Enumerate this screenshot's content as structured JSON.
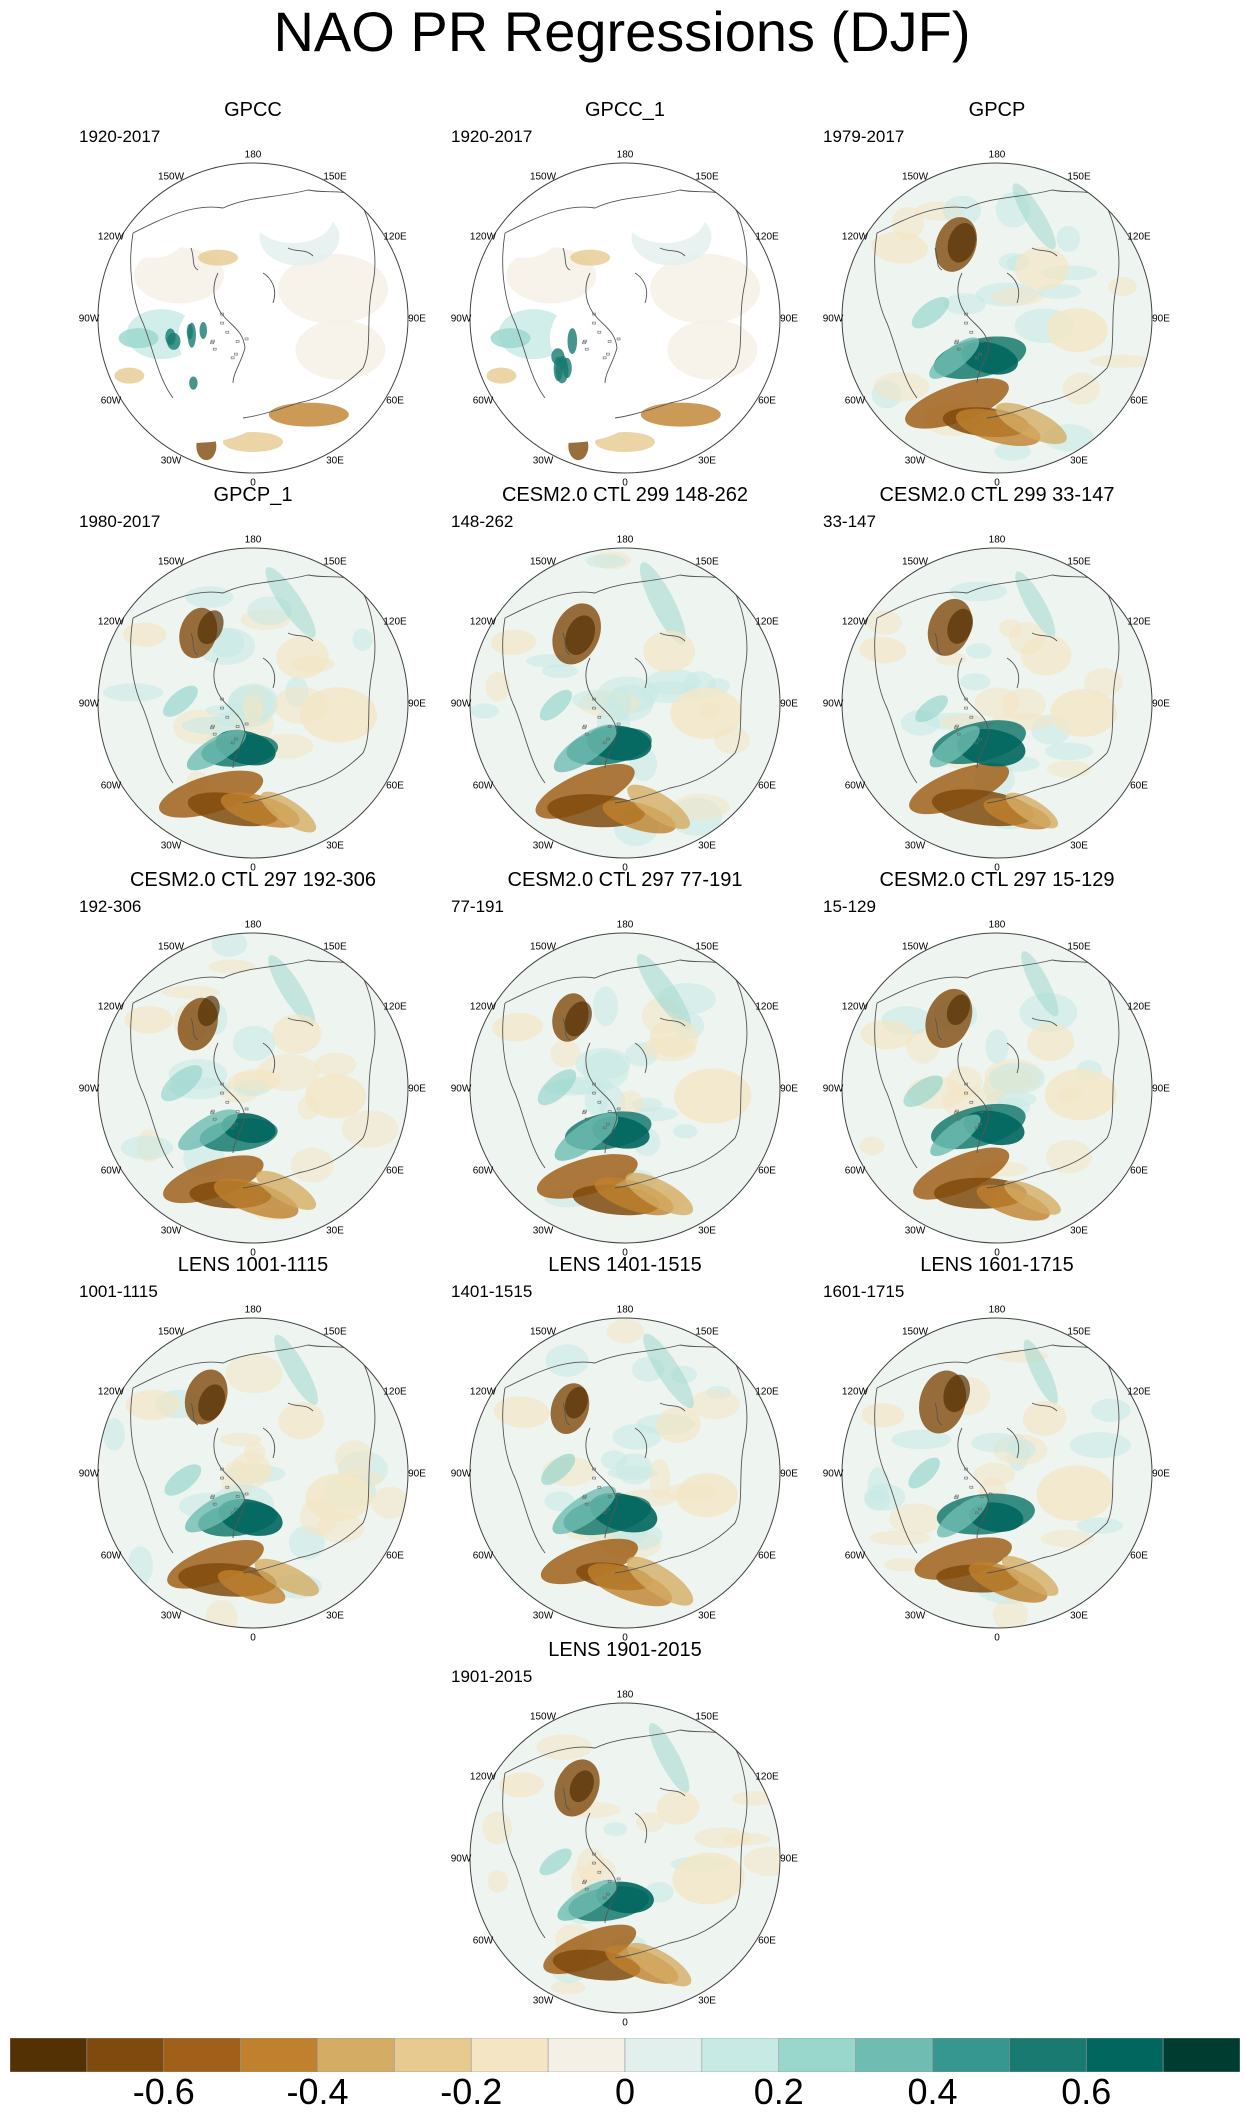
{
  "title": "NAO PR Regressions (DJF)",
  "lon_labels": [
    "180",
    "150E",
    "120E",
    "90E",
    "60E",
    "30E",
    "0",
    "30W",
    "60W",
    "90W",
    "120W",
    "150W"
  ],
  "panels": [
    {
      "title": "GPCC",
      "years": "1920-2017",
      "coverage": "land"
    },
    {
      "title": "GPCC_1",
      "years": "1920-2017",
      "coverage": "land"
    },
    {
      "title": "GPCP",
      "years": "1979-2017",
      "coverage": "global"
    },
    {
      "title": "GPCP_1",
      "years": "1980-2017",
      "coverage": "global"
    },
    {
      "title": "CESM2.0 CTL 299 148-262",
      "years": "148-262",
      "coverage": "global"
    },
    {
      "title": "CESM2.0 CTL 299 33-147",
      "years": "33-147",
      "coverage": "global"
    },
    {
      "title": "CESM2.0 CTL 297 192-306",
      "years": "192-306",
      "coverage": "global"
    },
    {
      "title": "CESM2.0 CTL 297 77-191",
      "years": "77-191",
      "coverage": "global"
    },
    {
      "title": "CESM2.0 CTL 297 15-129",
      "years": "15-129",
      "coverage": "global"
    },
    {
      "title": "LENS 1001-1115",
      "years": "1001-1115",
      "coverage": "global"
    },
    {
      "title": "LENS 1401-1515",
      "years": "1401-1515",
      "coverage": "global"
    },
    {
      "title": "LENS 1601-1715",
      "years": "1601-1715",
      "coverage": "global"
    },
    {
      "title": "LENS 1901-2015",
      "years": "1901-2015",
      "coverage": "global"
    }
  ],
  "colorbar": {
    "colors": [
      "#543005",
      "#7f4a0d",
      "#a0601a",
      "#bf812d",
      "#d5ac64",
      "#e6ca90",
      "#f4e6c5",
      "#f5f0e6",
      "#e1efed",
      "#c7eae5",
      "#99d6cc",
      "#6fbdb2",
      "#35978f",
      "#187a70",
      "#01665e",
      "#003c30"
    ],
    "ticks": [
      "-0.6",
      "-0.4",
      "-0.2",
      "0",
      "0.2",
      "0.4",
      "0.6"
    ],
    "tick_values": [
      -0.6,
      -0.4,
      -0.2,
      0,
      0.2,
      0.4,
      0.6
    ],
    "range": [
      -0.8,
      0.8
    ]
  }
}
